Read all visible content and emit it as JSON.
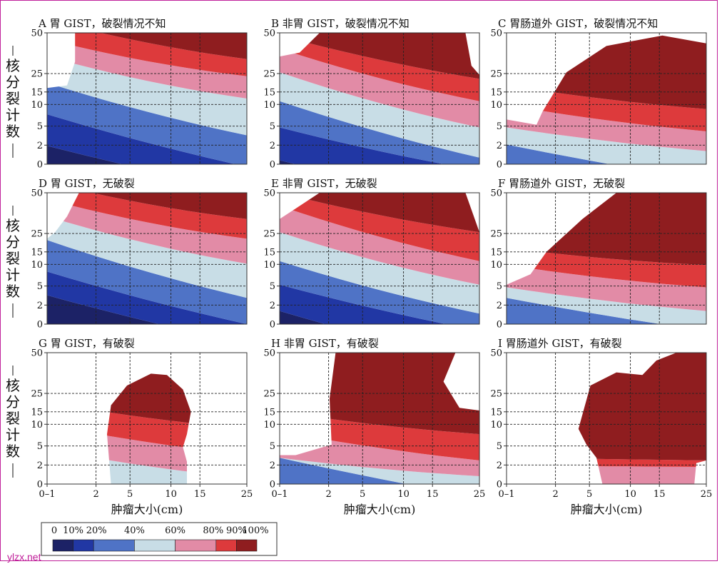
{
  "chart_data": {
    "type": "heatmap",
    "subtype": "risk contour map grid (3x3)",
    "x_ticks": [
      "0–1",
      "2",
      "5",
      "10",
      "15",
      "25"
    ],
    "y_ticks": [
      "0",
      "2",
      "5",
      "10",
      "15",
      "25",
      "50"
    ],
    "xlabel": "肿瘤大小(cm)",
    "ylabel": "核分裂计数",
    "colorbar": {
      "tick_labels": [
        "0",
        "10%",
        "20%",
        "40%",
        "60%",
        "80%",
        "90%",
        "100%"
      ],
      "bins": [
        {
          "range": [
            0,
            10
          ],
          "color": "#1c2266"
        },
        {
          "range": [
            10,
            20
          ],
          "color": "#2137a4"
        },
        {
          "range": [
            20,
            40
          ],
          "color": "#4f73c6"
        },
        {
          "range": [
            40,
            60
          ],
          "color": "#c8dde6"
        },
        {
          "range": [
            60,
            80
          ],
          "color": "#e28ba6"
        },
        {
          "range": [
            80,
            90
          ],
          "color": "#dd3a3c"
        },
        {
          "range": [
            90,
            100
          ],
          "color": "#8f1d1f"
        }
      ]
    },
    "panels": [
      {
        "id": "A",
        "title": "胃 GIST，破裂情况不知"
      },
      {
        "id": "B",
        "title": "非胃 GIST，破裂情况不知"
      },
      {
        "id": "C",
        "title": "胃肠道外 GIST，破裂情况不知"
      },
      {
        "id": "D",
        "title": "胃 GIST，无破裂"
      },
      {
        "id": "E",
        "title": "非胃 GIST，无破裂"
      },
      {
        "id": "F",
        "title": "胃肠道外 GIST，无破裂"
      },
      {
        "id": "G",
        "title": "胃 GIST，有破裂"
      },
      {
        "id": "H",
        "title": "非胃 GIST，有破裂"
      },
      {
        "id": "I",
        "title": "胃肠道外 GIST，有破裂"
      }
    ]
  },
  "watermark": "ylzx.net",
  "frame_color": "#c0209a"
}
